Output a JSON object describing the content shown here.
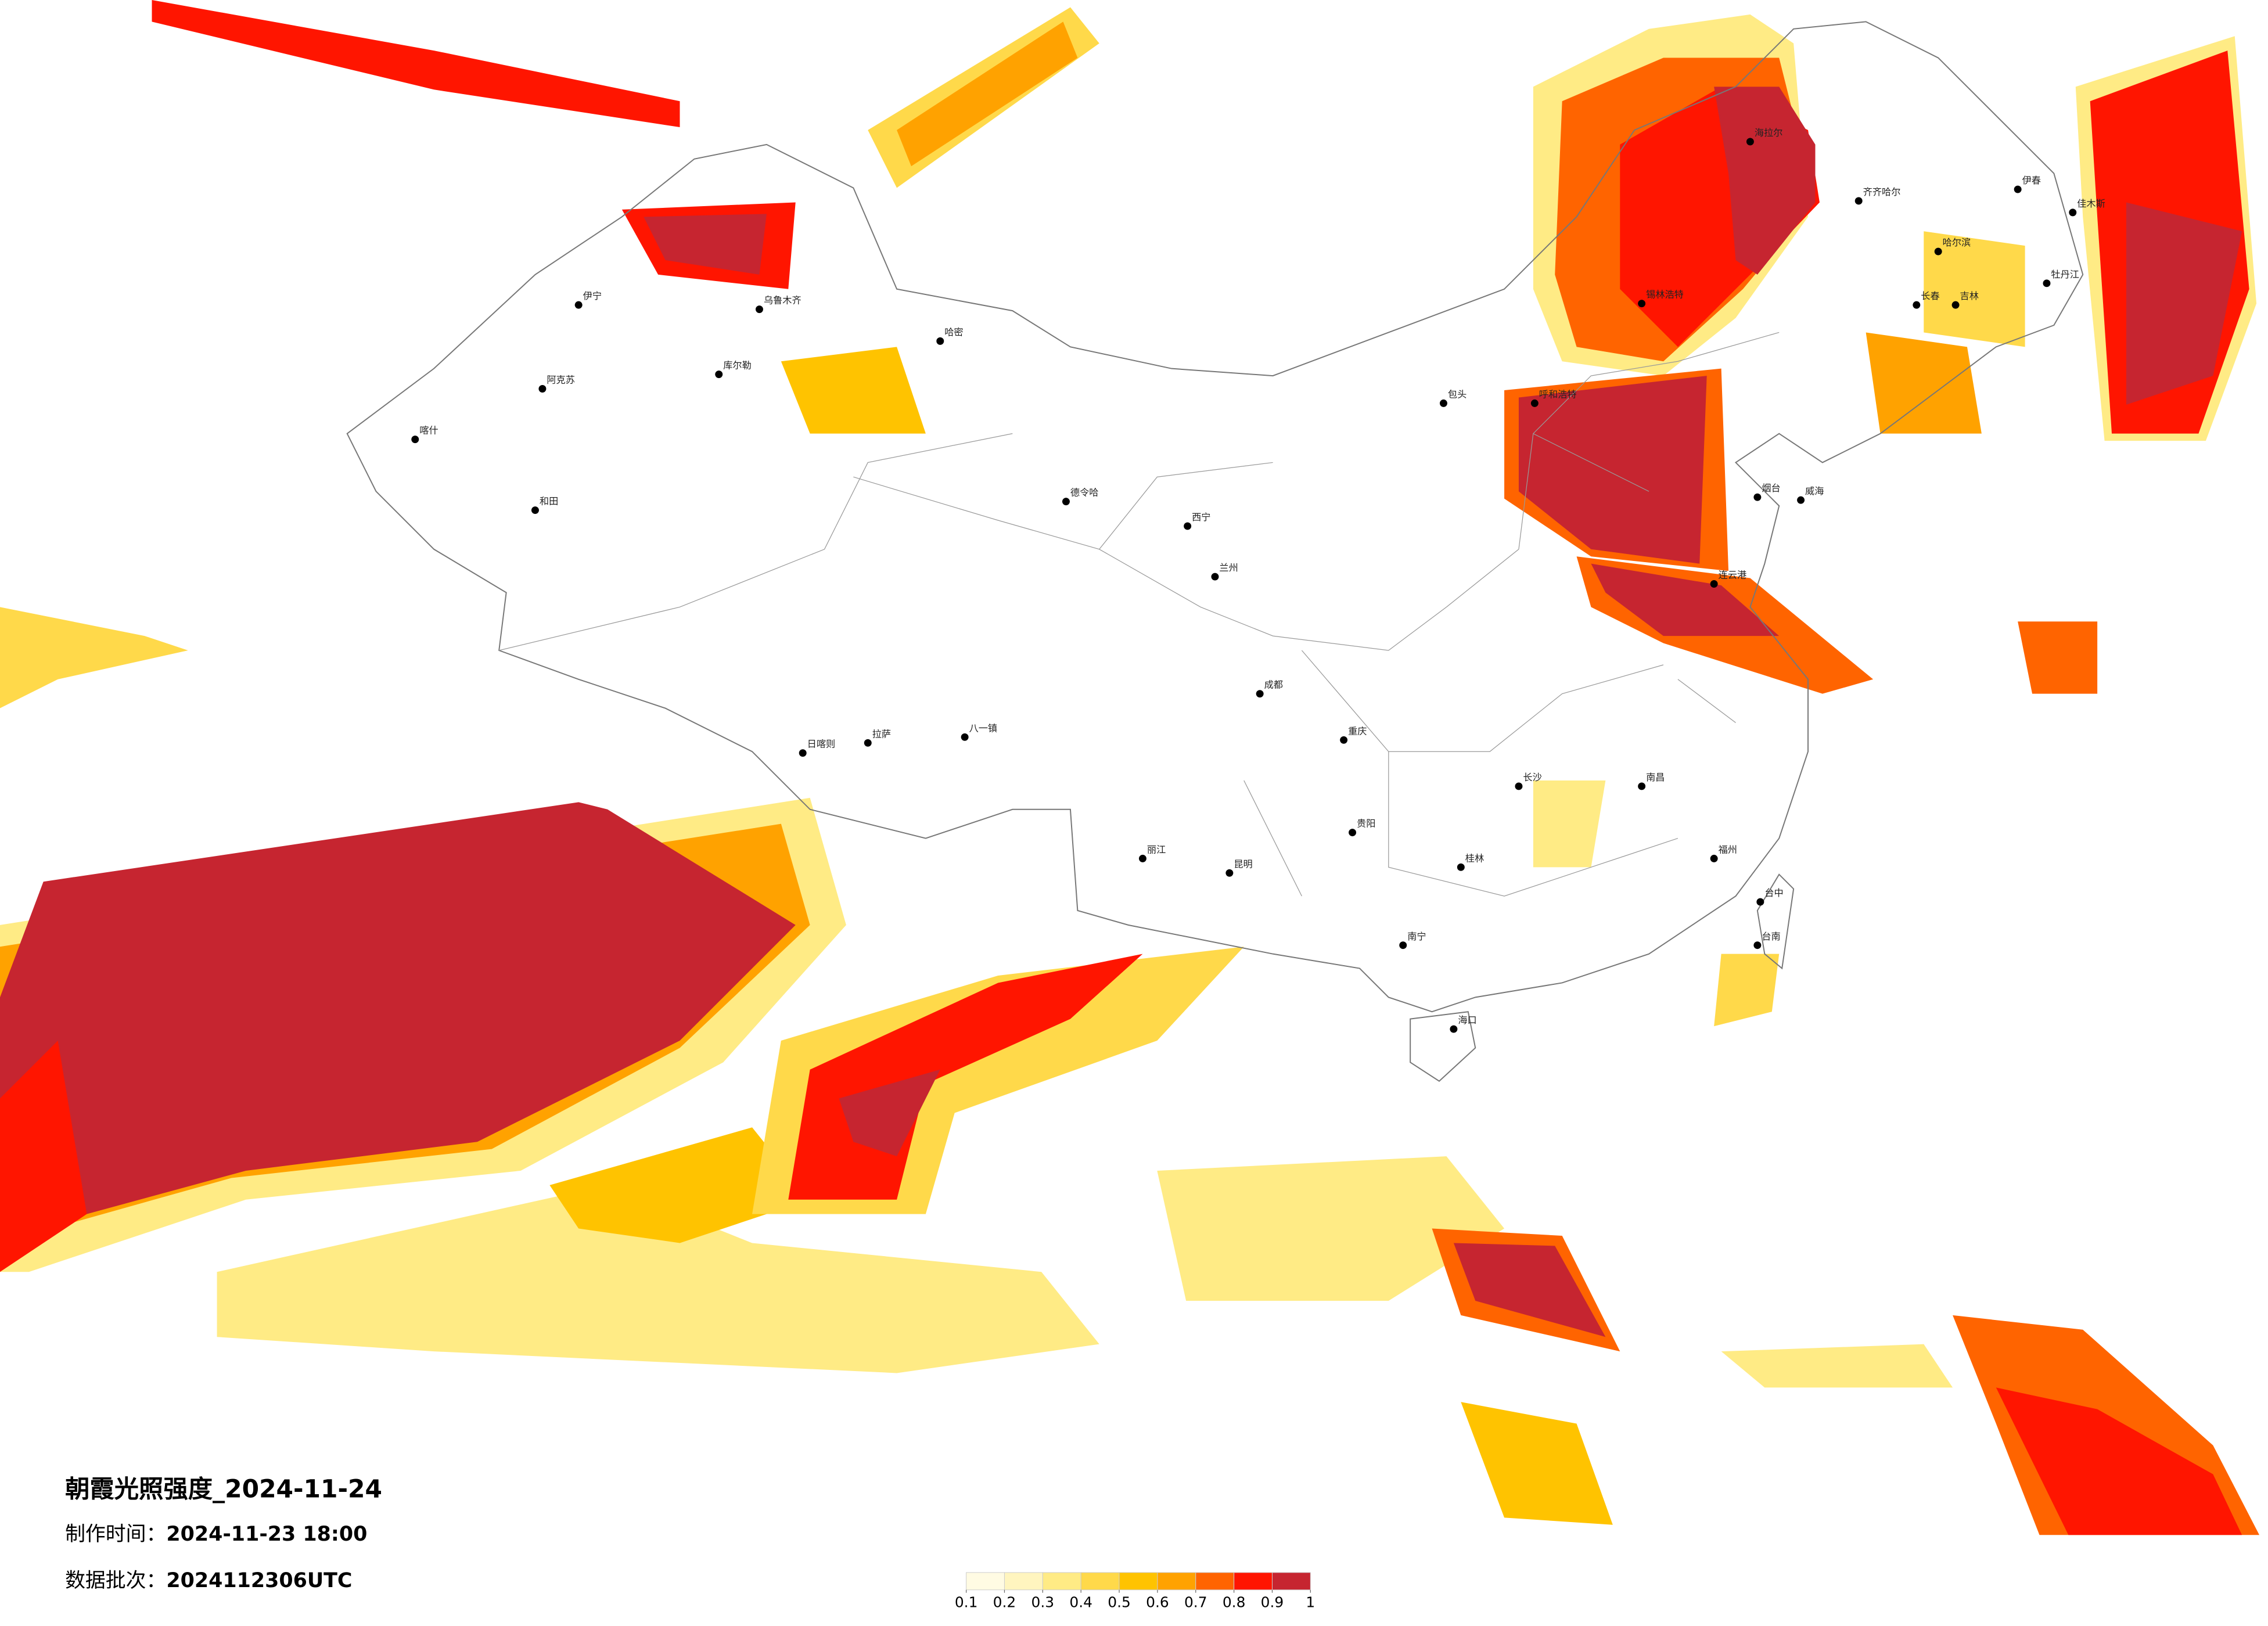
{
  "title": "朝霞光照强度_2024-11-24",
  "made_label": "制作时间：",
  "made_time": "2024-11-23 18:00",
  "batch_label": "数据批次：",
  "batch": "2024112306UTC",
  "legend": {
    "ticks": [
      0.1,
      0.2,
      0.3,
      0.4,
      0.5,
      0.6,
      0.7,
      0.8,
      0.9,
      1
    ],
    "colors": [
      "#fffbe3",
      "#fff5bf",
      "#ffeb85",
      "#ffd94a",
      "#ffc300",
      "#ffa200",
      "#ff6400",
      "#ff1500",
      "#c62530"
    ]
  },
  "cities": [
    "伊宁",
    "阿克苏",
    "和田",
    "喀什",
    "乌鲁木齐",
    "哈密",
    "库尔勒",
    "德令哈",
    "拉萨",
    "日喀则",
    "八一镇",
    "西宁",
    "兰州",
    "成都",
    "重庆",
    "贵阳",
    "昆明",
    "南宁",
    "海口",
    "桂林",
    "长沙",
    "南昌",
    "福州",
    "台中",
    "台南",
    "呼和浩特",
    "包头",
    "锡林浩特",
    "海拉尔",
    "齐齐哈尔",
    "哈尔滨",
    "长春",
    "吉林",
    "牡丹江",
    "佳木斯",
    "伊春",
    "烟台",
    "威海",
    "连云港",
    "丽江"
  ]
}
